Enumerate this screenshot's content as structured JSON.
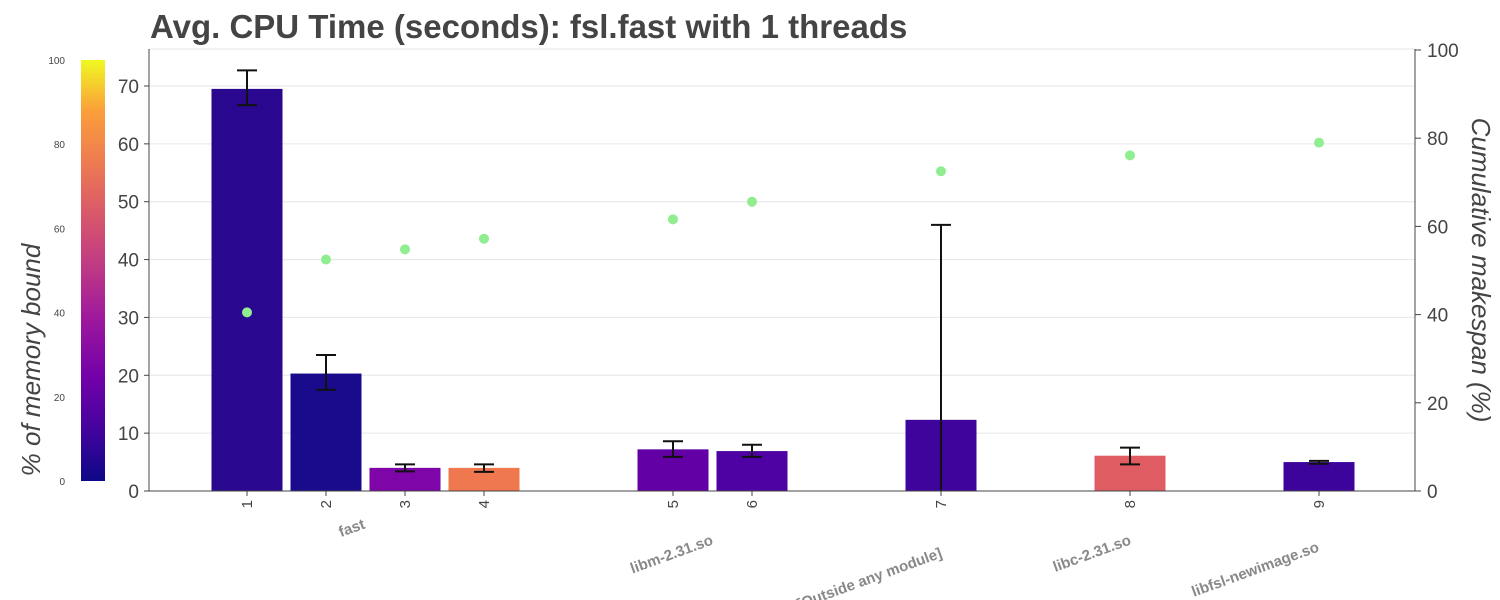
{
  "chart_data": {
    "type": "bar",
    "title": "Avg. CPU Time (seconds): fsl.fast with 1 threads",
    "y_left": {
      "ylim": [
        0,
        76
      ],
      "ticks": [
        0,
        10,
        20,
        30,
        40,
        50,
        60,
        70
      ]
    },
    "y_right": {
      "label": "Cumulative makespan (%)",
      "ylim": [
        0,
        100
      ],
      "ticks": [
        0,
        20,
        40,
        60,
        80,
        100
      ]
    },
    "colorbar": {
      "label": "% of memory bound",
      "range": [
        0,
        100
      ],
      "ticks": [
        0,
        20,
        40,
        60,
        80,
        100
      ],
      "colormap": "plasma"
    },
    "bars": [
      {
        "x_label": "1",
        "value": 69.5,
        "err_low": 66.7,
        "err_high": 72.7,
        "memory_bound": 8,
        "color": "#2a078f",
        "cumulative": 40.5
      },
      {
        "x_label": "2",
        "value": 20.3,
        "err_low": 17.5,
        "err_high": 23.5,
        "memory_bound": 3,
        "color": "#1a0a8c",
        "cumulative": 52.5
      },
      {
        "x_label": "3",
        "value": 4.0,
        "err_low": 3.4,
        "err_high": 4.6,
        "memory_bound": 28,
        "color": "#7e06a8",
        "cumulative": 54.8
      },
      {
        "x_label": "4",
        "value": 4.0,
        "err_low": 3.3,
        "err_high": 4.6,
        "memory_bound": 75,
        "color": "#f0784e",
        "cumulative": 57.2
      },
      {
        "x_label": "5",
        "value": 7.2,
        "err_low": 5.9,
        "err_high": 8.6,
        "memory_bound": 22,
        "color": "#6200a5",
        "cumulative": 61.6
      },
      {
        "x_label": "6",
        "value": 6.9,
        "err_low": 5.9,
        "err_high": 8.0,
        "memory_bound": 16,
        "color": "#4e02a3",
        "cumulative": 65.6
      },
      {
        "x_label": "7",
        "value": 12.3,
        "err_low": 0,
        "err_high": 46.0,
        "memory_bound": 12,
        "color": "#3e049b",
        "cumulative": 72.5
      },
      {
        "x_label": "8",
        "value": 6.1,
        "err_low": 4.6,
        "err_high": 7.5,
        "memory_bound": 65,
        "color": "#e05c63",
        "cumulative": 76.1
      },
      {
        "x_label": "9",
        "value": 5.0,
        "err_low": 4.7,
        "err_high": 5.2,
        "memory_bound": 13,
        "color": "#3c049b",
        "cumulative": 79.0
      }
    ],
    "groups": [
      {
        "label": "fast",
        "bars": [
          1,
          2,
          3,
          4
        ]
      },
      {
        "label": "libm-2.31.so",
        "bars": [
          5,
          6
        ]
      },
      {
        "label": "[Outside any module]",
        "bars": [
          7
        ]
      },
      {
        "label": "libc-2.31.so",
        "bars": [
          8
        ]
      },
      {
        "label": "libfsl-newimage.so",
        "bars": [
          9
        ]
      }
    ],
    "marker_color": "#90ee90",
    "grid": true
  }
}
